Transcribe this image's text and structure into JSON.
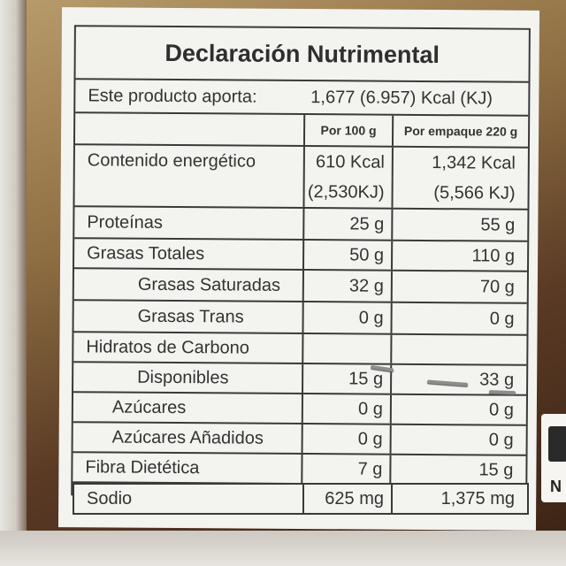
{
  "label": {
    "title": "Declaración Nutrimental",
    "aporta_label": "Este producto aporta:",
    "aporta_value": "1,677 (6.957) Kcal (KJ)",
    "col_100g": "Por 100 g",
    "col_pack": "Por empaque 220 g",
    "rows": [
      {
        "name": "Contenido energético",
        "v100": "610 Kcal",
        "vpack": "1,342 Kcal"
      },
      {
        "name": "",
        "v100": "(2,530KJ)",
        "vpack": "(5,566 KJ)"
      },
      {
        "name": "Proteínas",
        "v100": "25 g",
        "vpack": "55 g"
      },
      {
        "name": "Grasas Totales",
        "v100": "50 g",
        "vpack": "110 g"
      },
      {
        "name": "Grasas Saturadas",
        "v100": "32 g",
        "vpack": "70 g"
      },
      {
        "name": "Grasas Trans",
        "v100": "0 g",
        "vpack": "0 g"
      },
      {
        "name": "Hidratos de Carbono",
        "v100": "",
        "vpack": ""
      },
      {
        "name": "Disponibles",
        "v100": "15 g",
        "vpack": "33 g"
      },
      {
        "name": "Azúcares",
        "v100": "0 g",
        "vpack": "0 g"
      },
      {
        "name": "Azúcares Añadidos",
        "v100": "0 g",
        "vpack": "0 g"
      },
      {
        "name": "Fibra Dietética",
        "v100": "7 g",
        "vpack": "15 g"
      },
      {
        "name": "Sodio",
        "v100": "625 mg",
        "vpack": "1,375 mg"
      }
    ]
  },
  "side_logo": {
    "letter": "N"
  }
}
